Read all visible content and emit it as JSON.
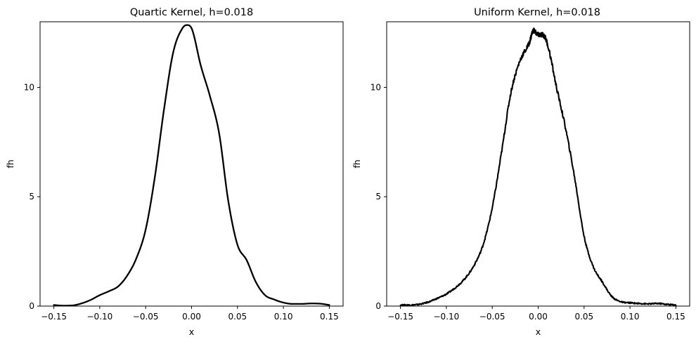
{
  "colors": {
    "line": "#000000",
    "background": "#ffffff"
  },
  "chart_data": [
    {
      "type": "line",
      "title": "Quartic Kernel, h=0.018",
      "xlabel": "x",
      "ylabel": "fh",
      "xlim": [
        -0.165,
        0.165
      ],
      "ylim": [
        0,
        13.0
      ],
      "xticks": [
        -0.15,
        -0.1,
        -0.05,
        0.0,
        0.05,
        0.1,
        0.15
      ],
      "xtick_labels": [
        "−0.15",
        "−0.10",
        "−0.05",
        "0.00",
        "0.05",
        "0.10",
        "0.15"
      ],
      "yticks": [
        0,
        5,
        10
      ],
      "ytick_labels": [
        "0",
        "5",
        "10"
      ],
      "grid": false,
      "series": [
        {
          "x": [
            -0.15,
            -0.14,
            -0.13,
            -0.12,
            -0.11,
            -0.1,
            -0.09,
            -0.08,
            -0.07,
            -0.06,
            -0.05,
            -0.04,
            -0.03,
            -0.02,
            -0.01,
            -0.005,
            0.0,
            0.01,
            0.02,
            0.03,
            0.04,
            0.05,
            0.06,
            0.07,
            0.08,
            0.09,
            0.1,
            0.11,
            0.12,
            0.13,
            0.14,
            0.15
          ],
          "y": [
            0.05,
            0.02,
            0.03,
            0.12,
            0.28,
            0.5,
            0.68,
            0.9,
            1.4,
            2.2,
            3.5,
            5.9,
            9.0,
            11.6,
            12.7,
            12.85,
            12.7,
            11.0,
            9.6,
            7.9,
            4.8,
            2.8,
            2.1,
            1.1,
            0.5,
            0.3,
            0.16,
            0.1,
            0.1,
            0.12,
            0.11,
            0.05
          ]
        }
      ]
    },
    {
      "type": "line",
      "title": "Uniform Kernel, h=0.018",
      "xlabel": "x",
      "ylabel": "fh",
      "xlim": [
        -0.165,
        0.165
      ],
      "ylim": [
        0,
        13.0
      ],
      "xticks": [
        -0.15,
        -0.1,
        -0.05,
        0.0,
        0.05,
        0.1,
        0.15
      ],
      "xtick_labels": [
        "−0.15",
        "−0.10",
        "−0.05",
        "0.00",
        "0.05",
        "0.10",
        "0.15"
      ],
      "yticks": [
        0,
        5,
        10
      ],
      "ytick_labels": [
        "0",
        "5",
        "10"
      ],
      "grid": false,
      "series": [
        {
          "x": [
            -0.15,
            -0.14,
            -0.13,
            -0.12,
            -0.11,
            -0.1,
            -0.09,
            -0.08,
            -0.07,
            -0.06,
            -0.05,
            -0.04,
            -0.03,
            -0.02,
            -0.01,
            -0.005,
            0.0,
            0.005,
            0.01,
            0.02,
            0.03,
            0.04,
            0.05,
            0.06,
            0.07,
            0.08,
            0.09,
            0.1,
            0.11,
            0.12,
            0.13,
            0.14,
            0.15
          ],
          "y": [
            0.05,
            0.05,
            0.08,
            0.18,
            0.35,
            0.55,
            0.85,
            1.25,
            1.85,
            2.8,
            4.5,
            7.0,
            9.7,
            11.2,
            12.0,
            12.6,
            12.4,
            12.4,
            12.0,
            10.0,
            8.1,
            5.8,
            3.2,
            1.8,
            1.1,
            0.45,
            0.2,
            0.15,
            0.12,
            0.1,
            0.12,
            0.08,
            0.05
          ]
        }
      ]
    }
  ]
}
